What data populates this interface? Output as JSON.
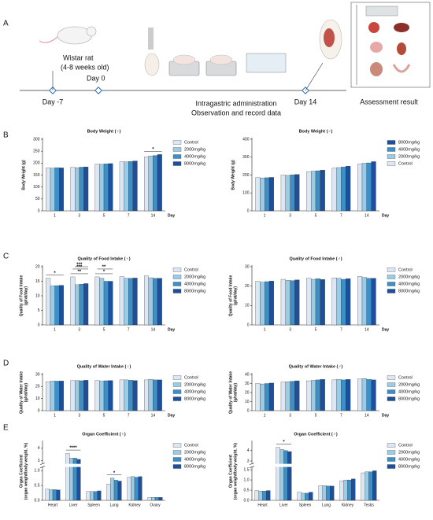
{
  "panels": [
    "A",
    "B",
    "C",
    "D",
    "E"
  ],
  "timeline": {
    "animal": "Wistar rat",
    "age": "(4-8 weeks old)",
    "day_start": "Day -7",
    "day_0": "Day 0",
    "procedure": "Intragastric administration",
    "observation": "Observation and record data",
    "day_end": "Day 14",
    "result": "Assessment result"
  },
  "chart_data": [
    {
      "type": "bar",
      "title": "Body Weight (♀)",
      "ylabel": [
        "Body Weight (g)"
      ],
      "xlabel": "Day",
      "categories": [
        "1",
        "3",
        "5",
        "7",
        "14"
      ],
      "ylim": [
        0,
        300
      ],
      "yticks": [
        0,
        50,
        100,
        150,
        200,
        250,
        300
      ],
      "annotations": [
        "*"
      ],
      "series": [
        {
          "name": "Control",
          "color": "#dde6f3",
          "values": [
            180,
            182,
            196,
            206,
            226
          ]
        },
        {
          "name": "2000mg/kg",
          "color": "#9ccbe6",
          "values": [
            179,
            181,
            195,
            205,
            230
          ]
        },
        {
          "name": "4000mg/kg",
          "color": "#3d8fc7",
          "values": [
            181,
            183,
            197,
            207,
            232
          ]
        },
        {
          "name": "8000mg/kg",
          "color": "#1d4f9a",
          "values": [
            180,
            184,
            198,
            209,
            236
          ]
        }
      ]
    },
    {
      "type": "bar",
      "title": "Body Weight (♂)",
      "ylabel": [
        "Body Weight (g)"
      ],
      "xlabel": "Day",
      "categories": [
        "1",
        "3",
        "5",
        "7",
        "14"
      ],
      "ylim": [
        0,
        400
      ],
      "yticks": [
        0,
        100,
        200,
        300,
        400
      ],
      "legend_order": "reversed",
      "annotations": [],
      "series": [
        {
          "name": "Control",
          "color": "#dde6f3",
          "values": [
            186,
            200,
            218,
            238,
            262
          ]
        },
        {
          "name": "2000mg/kg",
          "color": "#9ccbe6",
          "values": [
            184,
            198,
            222,
            242,
            266
          ]
        },
        {
          "name": "4000mg/kg",
          "color": "#3d8fc7",
          "values": [
            185,
            201,
            224,
            245,
            268
          ]
        },
        {
          "name": "8000mg/kg",
          "color": "#1d4f9a",
          "values": [
            187,
            203,
            228,
            250,
            275
          ]
        }
      ]
    },
    {
      "type": "bar",
      "title": "Quality of Food Intake (♀)",
      "ylabel": [
        "Quality of Food Intake",
        "(g/rat/day)"
      ],
      "xlabel": "Day",
      "categories": [
        "1",
        "3",
        "5",
        "7",
        "14"
      ],
      "ylim": [
        0,
        20
      ],
      "yticks": [
        0,
        5,
        10,
        15,
        20
      ],
      "annotations": [
        "*",
        "**",
        "***",
        "***",
        "*",
        "**"
      ],
      "series": [
        {
          "name": "Control",
          "color": "#dde6f3",
          "values": [
            16.0,
            16.5,
            16.5,
            16.6,
            16.8
          ]
        },
        {
          "name": "2000mg/kg",
          "color": "#9ccbe6",
          "values": [
            13.4,
            13.8,
            16.0,
            16.0,
            16.2
          ]
        },
        {
          "name": "4000mg/kg",
          "color": "#3d8fc7",
          "values": [
            13.5,
            14.0,
            15.0,
            16.0,
            16.0
          ]
        },
        {
          "name": "8000mg/kg",
          "color": "#1d4f9a",
          "values": [
            13.6,
            14.2,
            15.0,
            16.1,
            16.0
          ]
        }
      ]
    },
    {
      "type": "bar",
      "title": "Quality of Food Intake (♂)",
      "ylabel": [
        "Quality of Food Intake",
        "(g/rat/day)"
      ],
      "xlabel": "Day",
      "categories": [
        "1",
        "3",
        "5",
        "7",
        "14"
      ],
      "ylim": [
        0,
        30
      ],
      "yticks": [
        0,
        10,
        20,
        30
      ],
      "annotations": [],
      "series": [
        {
          "name": "Control",
          "color": "#dde6f3",
          "values": [
            22.5,
            23.5,
            24.0,
            24.2,
            25.0
          ]
        },
        {
          "name": "2000mg/kg",
          "color": "#9ccbe6",
          "values": [
            22.0,
            23.0,
            23.5,
            24.0,
            24.5
          ]
        },
        {
          "name": "4000mg/kg",
          "color": "#3d8fc7",
          "values": [
            22.3,
            22.8,
            23.8,
            23.5,
            24.0
          ]
        },
        {
          "name": "8000mg/kg",
          "color": "#1d4f9a",
          "values": [
            22.6,
            23.2,
            23.4,
            23.8,
            24.0
          ]
        }
      ]
    },
    {
      "type": "bar",
      "title": "Quality of Water Intake (♀)",
      "ylabel": [
        "Quality of Water Intake",
        "(g/rat/day)"
      ],
      "xlabel": "Day",
      "categories": [
        "1",
        "3",
        "5",
        "7",
        "14"
      ],
      "ylim": [
        0,
        30
      ],
      "yticks": [
        0,
        10,
        20,
        30
      ],
      "annotations": [],
      "series": [
        {
          "name": "Control",
          "color": "#dde6f3",
          "values": [
            24.0,
            25.0,
            25.0,
            25.5,
            25.5
          ]
        },
        {
          "name": "2000mg/kg",
          "color": "#9ccbe6",
          "values": [
            24.5,
            25.0,
            24.5,
            25.5,
            26.0
          ]
        },
        {
          "name": "4000mg/kg",
          "color": "#3d8fc7",
          "values": [
            24.5,
            24.8,
            24.8,
            25.2,
            25.5
          ]
        },
        {
          "name": "8000mg/kg",
          "color": "#1d4f9a",
          "values": [
            24.6,
            25.2,
            25.0,
            25.0,
            25.5
          ]
        }
      ]
    },
    {
      "type": "bar",
      "title": "Quality of Water Intake (♂)",
      "ylabel": [
        "Quality of Water Intake",
        "(g/rat/day)"
      ],
      "xlabel": "Day",
      "categories": [
        "1",
        "3",
        "5",
        "7",
        "14"
      ],
      "ylim": [
        0,
        40
      ],
      "yticks": [
        0,
        10,
        20,
        30,
        40
      ],
      "annotations": [],
      "series": [
        {
          "name": "Control",
          "color": "#dde6f3",
          "values": [
            30.0,
            31.5,
            33.0,
            34.0,
            35.0
          ]
        },
        {
          "name": "2000mg/kg",
          "color": "#9ccbe6",
          "values": [
            29.5,
            32.0,
            33.5,
            34.5,
            35.5
          ]
        },
        {
          "name": "4000mg/kg",
          "color": "#3d8fc7",
          "values": [
            30.0,
            32.5,
            34.0,
            34.0,
            34.5
          ]
        },
        {
          "name": "8000mg/kg",
          "color": "#1d4f9a",
          "values": [
            30.5,
            33.0,
            34.5,
            34.5,
            34.0
          ]
        }
      ]
    },
    {
      "type": "bar",
      "title": "Organ Coefficient (♀)",
      "ylabel": [
        "Organ Coefficient",
        "(organ weight/body weight, %)"
      ],
      "categories": [
        "Heart",
        "Liver",
        "Spleen",
        "Lung",
        "Kidney",
        "Ovary"
      ],
      "ylim": [
        0,
        4.5
      ],
      "ybreak": [
        1.1,
        2.8
      ],
      "yticks": [
        {
          "value": 0,
          "label": "0.0"
        },
        0.5,
        {
          "value": 1,
          "label": "1.0"
        },
        3,
        4
      ],
      "annotations": [
        "****",
        "*"
      ],
      "series": [
        {
          "name": "Control",
          "color": "#dde6f3",
          "values": [
            0.38,
            3.6,
            0.3,
            0.55,
            0.78,
            0.1
          ]
        },
        {
          "name": "2000mg/kg",
          "color": "#9ccbe6",
          "values": [
            0.36,
            3.2,
            0.3,
            0.75,
            0.8,
            0.1
          ]
        },
        {
          "name": "4000mg/kg",
          "color": "#3d8fc7",
          "values": [
            0.36,
            3.2,
            0.3,
            0.68,
            0.78,
            0.1
          ]
        },
        {
          "name": "8000mg/kg",
          "color": "#1d4f9a",
          "values": [
            0.35,
            3.1,
            0.32,
            0.65,
            0.8,
            0.1
          ]
        }
      ]
    },
    {
      "type": "bar",
      "title": "Organ Coefficient (♂)",
      "ylabel": [
        "Organ Coefficient",
        "(organ weight/body weight, %)"
      ],
      "categories": [
        "Heart",
        "Liver",
        "Spleen",
        "Lung",
        "Kidney",
        "Testis"
      ],
      "ylim": [
        0,
        4.8
      ],
      "ybreak": [
        1.6,
        2.8
      ],
      "yticks": [
        {
          "value": 0,
          "label": "0.0"
        },
        0.5,
        {
          "value": 1,
          "label": "1.0"
        },
        1.5,
        3,
        4
      ],
      "annotations": [
        "*"
      ],
      "series": [
        {
          "name": "Control",
          "color": "#dde6f3",
          "values": [
            0.48,
            4.3,
            0.4,
            0.72,
            0.95,
            1.35
          ]
        },
        {
          "name": "2000mg/kg",
          "color": "#9ccbe6",
          "values": [
            0.45,
            4.1,
            0.35,
            0.72,
            1.0,
            1.4
          ]
        },
        {
          "name": "4000mg/kg",
          "color": "#3d8fc7",
          "values": [
            0.45,
            4.0,
            0.35,
            0.7,
            1.0,
            1.4
          ]
        },
        {
          "name": "8000mg/kg",
          "color": "#1d4f9a",
          "values": [
            0.48,
            3.9,
            0.4,
            0.7,
            1.05,
            1.45
          ]
        }
      ]
    }
  ]
}
